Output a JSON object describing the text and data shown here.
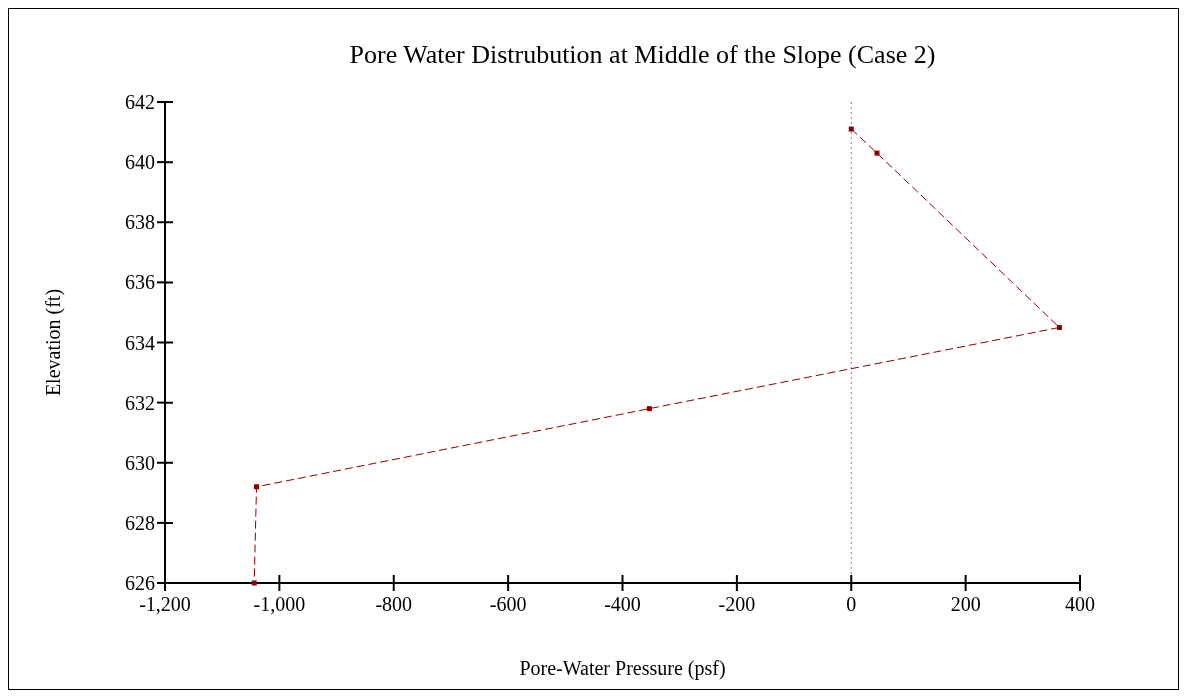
{
  "chart_data": {
    "type": "line",
    "title": "Pore Water Distrubution at Middle of the Slope (Case 2)",
    "xlabel": "Pore-Water Pressure (psf)",
    "ylabel": "Elevation (ft)",
    "series": [
      {
        "x": [
          0,
          45,
          364,
          -353,
          -1040,
          -1044
        ],
        "values": [
          641.1,
          640.3,
          634.5,
          631.8,
          629.2,
          626.0
        ],
        "color": "#8b0000"
      }
    ],
    "xlim": [
      -1200,
      400
    ],
    "xticks": [
      {
        "value": -1200,
        "label": "-1,200"
      },
      {
        "value": -1000,
        "label": "-1,000"
      },
      -800,
      -600,
      -400,
      -200,
      0,
      200,
      400
    ],
    "ylim": [
      626,
      642
    ],
    "yticks": [
      626,
      628,
      630,
      632,
      634,
      636,
      638,
      640,
      642
    ],
    "ref_lines": [
      {
        "axis": "x",
        "value": 0,
        "label": null,
        "color": "#808080",
        "line_style": "dotted"
      }
    ],
    "marker": "square",
    "line_style": "dashed"
  }
}
